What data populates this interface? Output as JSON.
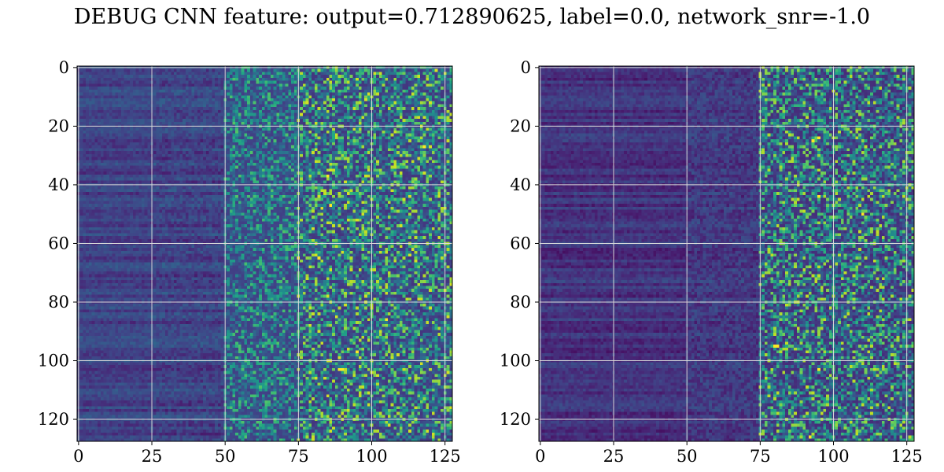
{
  "title": "DEBUG CNN feature: output=0.712890625, label=0.0, network_snr=-1.0",
  "colors": {
    "colormap": "viridis",
    "grid": "#d9d9d9",
    "frame": "#000000"
  },
  "chart_data": [
    {
      "type": "heatmap",
      "title": "",
      "xlabel": "",
      "ylabel": "",
      "shape": [
        128,
        128
      ],
      "xlim": [
        0,
        127
      ],
      "ylim": [
        127,
        0
      ],
      "xticks": [
        0,
        25,
        50,
        75,
        100,
        125
      ],
      "yticks": [
        0,
        20,
        40,
        60,
        80,
        100,
        120
      ],
      "x_tick_labels": [
        "0",
        "25",
        "50",
        "75",
        "100",
        "125"
      ],
      "y_tick_labels": [
        "0",
        "20",
        "40",
        "60",
        "80",
        "100",
        "120"
      ],
      "grid": true,
      "value_range": [
        0,
        1
      ],
      "column_bands": [
        {
          "cols": [
            0,
            25
          ],
          "mean": 0.2,
          "noise": 0.05
        },
        {
          "cols": [
            25,
            50
          ],
          "mean": 0.2,
          "noise": 0.07
        },
        {
          "cols": [
            50,
            75
          ],
          "mean": 0.25,
          "noise": 0.18
        },
        {
          "cols": [
            75,
            128
          ],
          "mean": 0.25,
          "noise": 0.26
        }
      ],
      "hot_cells": [
        [
          65,
          75
        ],
        [
          65,
          82
        ],
        [
          37,
          85
        ],
        [
          27,
          118
        ],
        [
          103,
          89
        ],
        [
          103,
          90
        ],
        [
          86,
          105
        ],
        [
          47,
          86
        ],
        [
          97,
          95
        ]
      ]
    },
    {
      "type": "heatmap",
      "title": "",
      "xlabel": "",
      "ylabel": "",
      "shape": [
        128,
        128
      ],
      "xlim": [
        0,
        127
      ],
      "ylim": [
        127,
        0
      ],
      "xticks": [
        0,
        25,
        50,
        75,
        100,
        125
      ],
      "yticks": [
        0,
        20,
        40,
        60,
        80,
        100,
        120
      ],
      "x_tick_labels": [
        "0",
        "25",
        "50",
        "75",
        "100",
        "125"
      ],
      "y_tick_labels": [
        "0",
        "20",
        "40",
        "60",
        "80",
        "100",
        "120"
      ],
      "grid": true,
      "value_range": [
        0,
        1
      ],
      "column_bands": [
        {
          "cols": [
            0,
            50
          ],
          "mean": 0.15,
          "noise": 0.05
        },
        {
          "cols": [
            50,
            75
          ],
          "mean": 0.17,
          "noise": 0.08
        },
        {
          "cols": [
            75,
            128
          ],
          "mean": 0.22,
          "noise": 0.26
        }
      ],
      "hot_cells": [
        [
          95,
          80
        ],
        [
          95,
          81
        ],
        [
          25,
          93
        ],
        [
          24,
          95
        ],
        [
          126,
          92
        ],
        [
          44,
          95
        ],
        [
          50,
          110
        ],
        [
          103,
          95
        ]
      ]
    }
  ]
}
